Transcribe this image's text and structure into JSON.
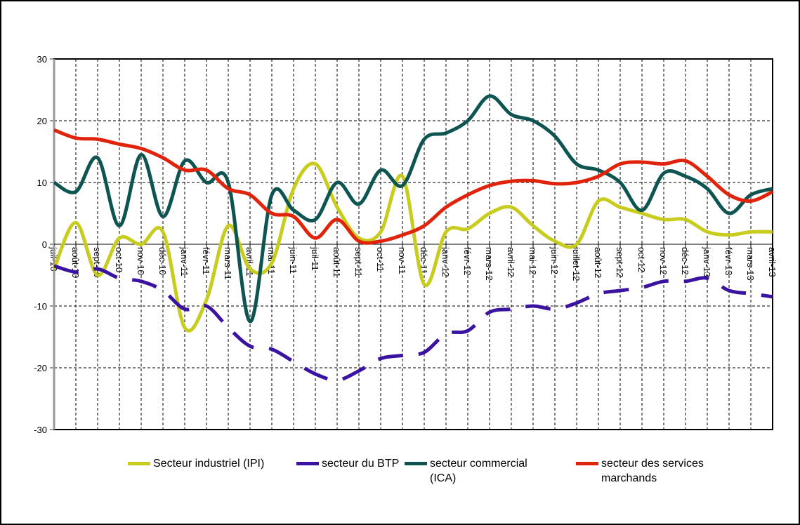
{
  "chart_data": {
    "type": "line",
    "categories": [
      "juil-10",
      "août-10",
      "sept-10",
      "oct-10",
      "nov-10",
      "déc-10",
      "janv-11",
      "févr-11",
      "mars-11",
      "avril-11",
      "mai-11",
      "juin-11",
      "juil-11",
      "août-11",
      "sept-11",
      "oct-11",
      "nov-11",
      "déc-11",
      "janv-12",
      "févr-12",
      "mars-12",
      "avril-12",
      "mai-12",
      "juin-12",
      "juillet-12",
      "août-12",
      "sept-12",
      "oct-12",
      "nov-12",
      "déc-12",
      "janv-13",
      "févr-13",
      "mars-13",
      "avril-13"
    ],
    "series": [
      {
        "name": "Secteur industriel (IPI)",
        "color": "#c8cc1e",
        "dashed": false,
        "values": [
          -4,
          3.5,
          -5,
          1,
          0,
          2,
          -13.5,
          -9,
          3,
          -4,
          -3,
          9,
          13,
          6,
          1,
          2,
          11,
          -6.5,
          2,
          2.5,
          5,
          6,
          3,
          0.5,
          0,
          7,
          6,
          5,
          4,
          4,
          2,
          1.5,
          2,
          2
        ]
      },
      {
        "name": "secteur du BTP",
        "color": "#3a13a0",
        "dashed": true,
        "values": [
          -3.5,
          -4.5,
          -4,
          -5.5,
          -6,
          -7.5,
          -10.5,
          -10,
          -13.5,
          -16.5,
          -17,
          -19,
          -21,
          -22,
          -20.5,
          -18.5,
          -18,
          -17.5,
          -14.5,
          -14,
          -11,
          -10.5,
          -10,
          -10.5,
          -9.5,
          -8,
          -7.5,
          -7,
          -6,
          -6,
          -5.5,
          -7.5,
          -8,
          -8.5
        ]
      },
      {
        "name": "secteur commercial (ICA)",
        "color": "#0e5552",
        "dashed": false,
        "values": [
          10,
          8.5,
          14,
          3,
          14.5,
          4.5,
          13.5,
          10,
          10,
          -12.5,
          8,
          5.5,
          4,
          10,
          6.5,
          12,
          9.5,
          17,
          18,
          20,
          24,
          21,
          20,
          17.5,
          13,
          12,
          10,
          5.5,
          11.5,
          11,
          9,
          5,
          8,
          9
        ]
      },
      {
        "name": "secteur des services marchands",
        "color": "#e0230b",
        "dashed": false,
        "values": [
          18.5,
          17.2,
          17,
          16.2,
          15.5,
          14,
          12,
          12,
          9,
          8,
          5,
          4.5,
          1,
          4,
          0.5,
          0.5,
          1.5,
          3,
          6,
          8,
          9.5,
          10.2,
          10.3,
          9.8,
          10,
          11,
          13,
          13.3,
          13,
          13.5,
          11,
          8,
          7,
          8.5
        ]
      }
    ],
    "ylim": [
      -30,
      30
    ],
    "yticks": [
      -30,
      -20,
      -10,
      0,
      10,
      20,
      30
    ],
    "grid": true
  }
}
